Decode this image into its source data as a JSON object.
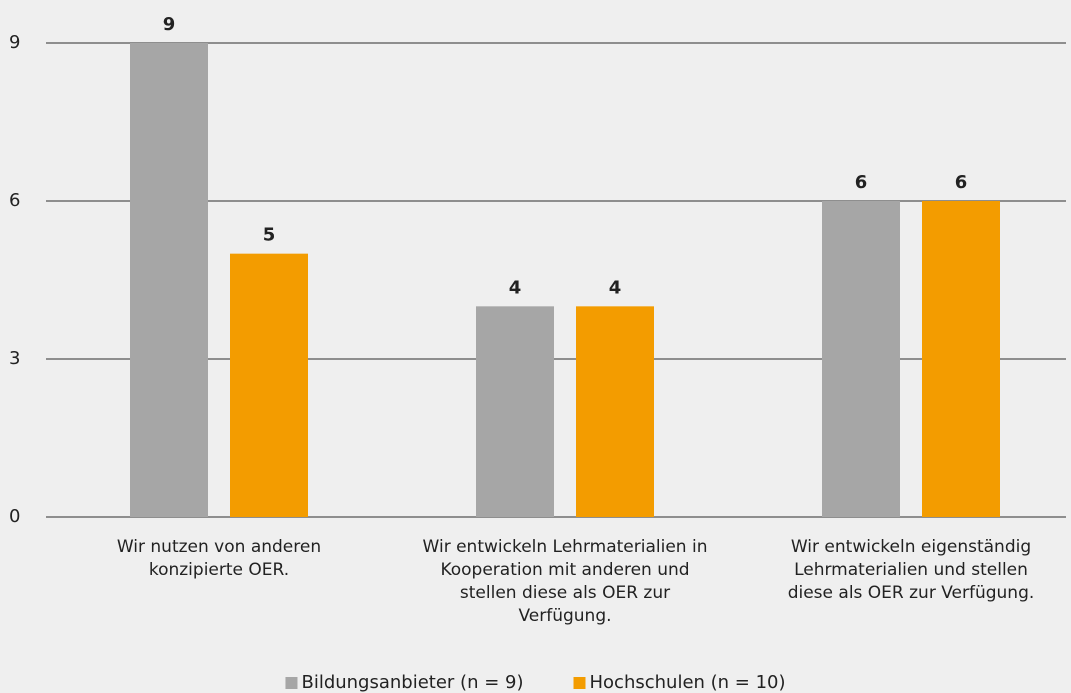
{
  "chart_data": {
    "type": "bar",
    "categories": [
      "Wir nutzen von anderen\nkonzipierte OER.",
      "Wir entwickeln Lehrmaterialien in\nKooperation mit anderen und\nstellen diese als OER zur\nVerfügung.",
      "Wir entwickeln eigenständig\nLehrmaterialien und stellen\ndiese als OER zur Verfügung."
    ],
    "series": [
      {
        "name": "Bildungsanbieter (n = 9)",
        "color": "#a6a6a6",
        "values": [
          9,
          4,
          6
        ]
      },
      {
        "name": "Hochschulen (n = 10)",
        "color": "#f39c00",
        "values": [
          5,
          4,
          6
        ]
      }
    ],
    "ylim": [
      0,
      9
    ],
    "yticks": [
      0,
      3,
      6,
      9
    ],
    "grid": true,
    "legend": "bottom"
  }
}
